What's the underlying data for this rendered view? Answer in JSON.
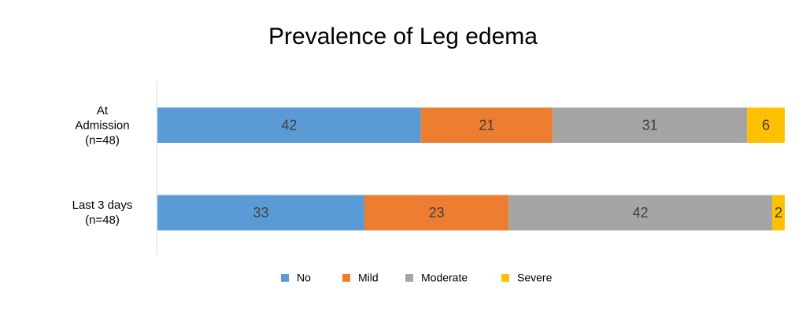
{
  "chart_data": {
    "type": "stacked-barh",
    "title": "Prevalence of Leg edema",
    "categories": [
      "At\nAdmission\n(n=48)",
      "Last 3 days\n(n=48)"
    ],
    "series": [
      {
        "name": "No",
        "color": "#5b9bd5",
        "values": [
          42,
          33
        ]
      },
      {
        "name": "Mild",
        "color": "#ed7d31",
        "values": [
          21,
          23
        ]
      },
      {
        "name": "Moderate",
        "color": "#a5a5a5",
        "values": [
          31,
          42
        ]
      },
      {
        "name": "Severe",
        "color": "#ffc000",
        "values": [
          6,
          2
        ]
      }
    ]
  }
}
